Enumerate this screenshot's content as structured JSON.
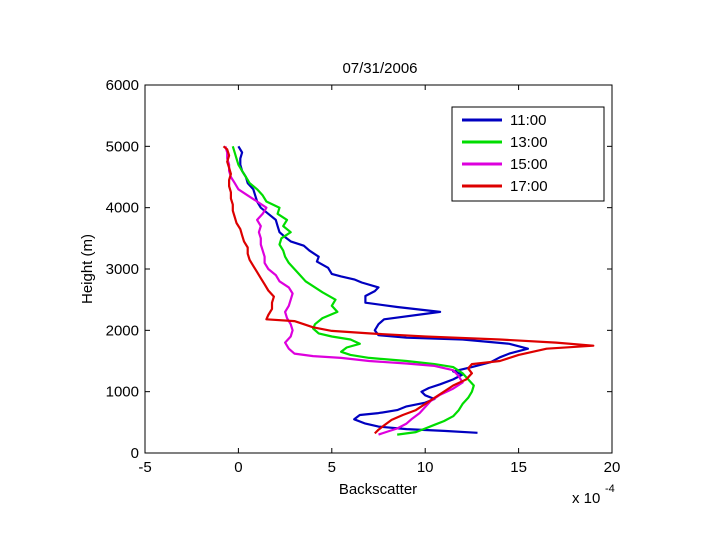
{
  "chart_data": {
    "type": "line",
    "title": "07/31/2006",
    "xlabel": "Backscatter",
    "ylabel": "Height (m)",
    "x_multiplier_label": "x 10",
    "x_multiplier_exponent": "-4",
    "xlim": [
      -5,
      20
    ],
    "ylim": [
      0,
      6000
    ],
    "xticks": [
      -5,
      0,
      5,
      10,
      15,
      20
    ],
    "yticks": [
      0,
      1000,
      2000,
      3000,
      4000,
      5000,
      6000
    ],
    "legend_position": "top-right",
    "grid": false,
    "series": [
      {
        "name": "11:00",
        "color": "#0000c0",
        "points": [
          [
            12.8,
            330
          ],
          [
            11,
            360
          ],
          [
            9,
            390
          ],
          [
            7.5,
            430
          ],
          [
            6.8,
            480
          ],
          [
            6.2,
            550
          ],
          [
            6.5,
            620
          ],
          [
            7.5,
            650
          ],
          [
            8.5,
            700
          ],
          [
            9,
            760
          ],
          [
            10,
            820
          ],
          [
            10.5,
            880
          ],
          [
            10,
            940
          ],
          [
            9.8,
            1000
          ],
          [
            10.2,
            1060
          ],
          [
            10.8,
            1120
          ],
          [
            11.5,
            1200
          ],
          [
            12,
            1280
          ],
          [
            11.5,
            1330
          ],
          [
            12.5,
            1400
          ],
          [
            13.5,
            1480
          ],
          [
            14,
            1560
          ],
          [
            14.5,
            1620
          ],
          [
            15.5,
            1700
          ],
          [
            14.5,
            1780
          ],
          [
            12,
            1850
          ],
          [
            9,
            1880
          ],
          [
            7.5,
            1920
          ],
          [
            7.3,
            2000
          ],
          [
            7.5,
            2100
          ],
          [
            7.8,
            2180
          ],
          [
            10.8,
            2300
          ],
          [
            8.5,
            2380
          ],
          [
            6.8,
            2450
          ],
          [
            6.8,
            2560
          ],
          [
            7.3,
            2640
          ],
          [
            7.5,
            2700
          ],
          [
            6.6,
            2780
          ],
          [
            6.2,
            2830
          ],
          [
            5.5,
            2880
          ],
          [
            5,
            2920
          ],
          [
            4.8,
            3020
          ],
          [
            4.2,
            3120
          ],
          [
            4.3,
            3200
          ],
          [
            3.8,
            3300
          ],
          [
            3.5,
            3380
          ],
          [
            2.8,
            3450
          ],
          [
            2.5,
            3520
          ],
          [
            2.2,
            3600
          ],
          [
            2.1,
            3700
          ],
          [
            2,
            3800
          ],
          [
            1.6,
            3900
          ],
          [
            1.2,
            4000
          ],
          [
            1,
            4100
          ],
          [
            0.9,
            4200
          ],
          [
            0.8,
            4300
          ],
          [
            0.5,
            4400
          ],
          [
            0.4,
            4500
          ],
          [
            0.2,
            4600
          ],
          [
            0.1,
            4700
          ],
          [
            0.1,
            4800
          ],
          [
            0.2,
            4900
          ],
          [
            0,
            5000
          ]
        ]
      },
      {
        "name": "13:00",
        "color": "#00dd00",
        "points": [
          [
            8.5,
            300
          ],
          [
            9.5,
            340
          ],
          [
            10,
            400
          ],
          [
            10.5,
            460
          ],
          [
            11,
            520
          ],
          [
            11.5,
            600
          ],
          [
            11.8,
            700
          ],
          [
            12,
            800
          ],
          [
            12.3,
            900
          ],
          [
            12.5,
            1000
          ],
          [
            12.6,
            1100
          ],
          [
            12.3,
            1200
          ],
          [
            12,
            1300
          ],
          [
            11.5,
            1400
          ],
          [
            10.5,
            1450
          ],
          [
            9,
            1500
          ],
          [
            7,
            1550
          ],
          [
            6,
            1600
          ],
          [
            5.5,
            1650
          ],
          [
            5.8,
            1720
          ],
          [
            6.5,
            1780
          ],
          [
            6,
            1850
          ],
          [
            5,
            1900
          ],
          [
            4.3,
            1950
          ],
          [
            4,
            2030
          ],
          [
            4.1,
            2100
          ],
          [
            4.5,
            2200
          ],
          [
            5.3,
            2300
          ],
          [
            5,
            2400
          ],
          [
            5.2,
            2500
          ],
          [
            4.5,
            2620
          ],
          [
            4,
            2720
          ],
          [
            3.6,
            2800
          ],
          [
            3.3,
            2900
          ],
          [
            3,
            3000
          ],
          [
            2.7,
            3100
          ],
          [
            2.5,
            3200
          ],
          [
            2.4,
            3300
          ],
          [
            2.2,
            3400
          ],
          [
            2.3,
            3500
          ],
          [
            2.8,
            3600
          ],
          [
            2.4,
            3700
          ],
          [
            2.6,
            3800
          ],
          [
            2.1,
            3900
          ],
          [
            2.2,
            4000
          ],
          [
            1.5,
            4100
          ],
          [
            1.3,
            4200
          ],
          [
            1,
            4300
          ],
          [
            0.6,
            4400
          ],
          [
            0.4,
            4500
          ],
          [
            0.2,
            4600
          ],
          [
            0,
            4700
          ],
          [
            -0.1,
            4800
          ],
          [
            -0.2,
            4900
          ],
          [
            -0.3,
            5000
          ]
        ]
      },
      {
        "name": "15:00",
        "color": "#dd00dd",
        "points": [
          [
            7.5,
            300
          ],
          [
            8,
            350
          ],
          [
            8.5,
            400
          ],
          [
            9,
            480
          ],
          [
            9.3,
            560
          ],
          [
            9.7,
            650
          ],
          [
            10,
            750
          ],
          [
            10.3,
            850
          ],
          [
            10.8,
            950
          ],
          [
            11.5,
            1050
          ],
          [
            12,
            1150
          ],
          [
            11.8,
            1250
          ],
          [
            11.5,
            1350
          ],
          [
            10.5,
            1420
          ],
          [
            9,
            1460
          ],
          [
            7,
            1500
          ],
          [
            5.5,
            1550
          ],
          [
            4,
            1580
          ],
          [
            3,
            1620
          ],
          [
            2.7,
            1700
          ],
          [
            2.5,
            1800
          ],
          [
            2.8,
            1900
          ],
          [
            2.9,
            2000
          ],
          [
            2.8,
            2100
          ],
          [
            2.6,
            2200
          ],
          [
            2.5,
            2300
          ],
          [
            2.7,
            2400
          ],
          [
            2.8,
            2500
          ],
          [
            2.9,
            2600
          ],
          [
            2.7,
            2700
          ],
          [
            2.2,
            2800
          ],
          [
            2,
            2900
          ],
          [
            1.6,
            3000
          ],
          [
            1.4,
            3100
          ],
          [
            1.4,
            3200
          ],
          [
            1.3,
            3300
          ],
          [
            1.2,
            3400
          ],
          [
            1.2,
            3500
          ],
          [
            1.1,
            3600
          ],
          [
            1.2,
            3700
          ],
          [
            1,
            3800
          ],
          [
            1.3,
            3900
          ],
          [
            1.5,
            4000
          ],
          [
            1,
            4100
          ],
          [
            0.5,
            4200
          ],
          [
            0,
            4300
          ],
          [
            -0.2,
            4400
          ],
          [
            -0.4,
            4500
          ],
          [
            -0.5,
            4600
          ],
          [
            -0.5,
            4700
          ],
          [
            -0.6,
            4800
          ],
          [
            -0.6,
            4900
          ],
          [
            -0.7,
            5000
          ]
        ]
      },
      {
        "name": "17:00",
        "color": "#dd0000",
        "points": [
          [
            7.3,
            320
          ],
          [
            7.5,
            380
          ],
          [
            7.8,
            450
          ],
          [
            8.2,
            540
          ],
          [
            8.8,
            620
          ],
          [
            9.5,
            700
          ],
          [
            10,
            800
          ],
          [
            10.5,
            900
          ],
          [
            11,
            1000
          ],
          [
            11.5,
            1100
          ],
          [
            12.2,
            1200
          ],
          [
            12.5,
            1300
          ],
          [
            12.3,
            1380
          ],
          [
            12.5,
            1450
          ],
          [
            14,
            1500
          ],
          [
            15,
            1600
          ],
          [
            16.5,
            1700
          ],
          [
            19,
            1750
          ],
          [
            17,
            1800
          ],
          [
            14,
            1850
          ],
          [
            10,
            1900
          ],
          [
            7,
            1950
          ],
          [
            5,
            1990
          ],
          [
            4,
            2050
          ],
          [
            3.5,
            2100
          ],
          [
            3,
            2150
          ],
          [
            1.5,
            2180
          ],
          [
            1.6,
            2250
          ],
          [
            1.8,
            2350
          ],
          [
            1.8,
            2450
          ],
          [
            1.9,
            2550
          ],
          [
            1.6,
            2650
          ],
          [
            1.4,
            2750
          ],
          [
            1.2,
            2850
          ],
          [
            1,
            2950
          ],
          [
            0.8,
            3050
          ],
          [
            0.6,
            3150
          ],
          [
            0.5,
            3250
          ],
          [
            0.5,
            3350
          ],
          [
            0.3,
            3450
          ],
          [
            0.2,
            3550
          ],
          [
            0.1,
            3650
          ],
          [
            -0.1,
            3750
          ],
          [
            -0.2,
            3850
          ],
          [
            -0.3,
            3950
          ],
          [
            -0.3,
            4050
          ],
          [
            -0.4,
            4150
          ],
          [
            -0.4,
            4250
          ],
          [
            -0.5,
            4350
          ],
          [
            -0.5,
            4450
          ],
          [
            -0.4,
            4550
          ],
          [
            -0.5,
            4650
          ],
          [
            -0.6,
            4750
          ],
          [
            -0.5,
            4850
          ],
          [
            -0.6,
            4950
          ],
          [
            -0.8,
            5000
          ]
        ]
      }
    ]
  }
}
